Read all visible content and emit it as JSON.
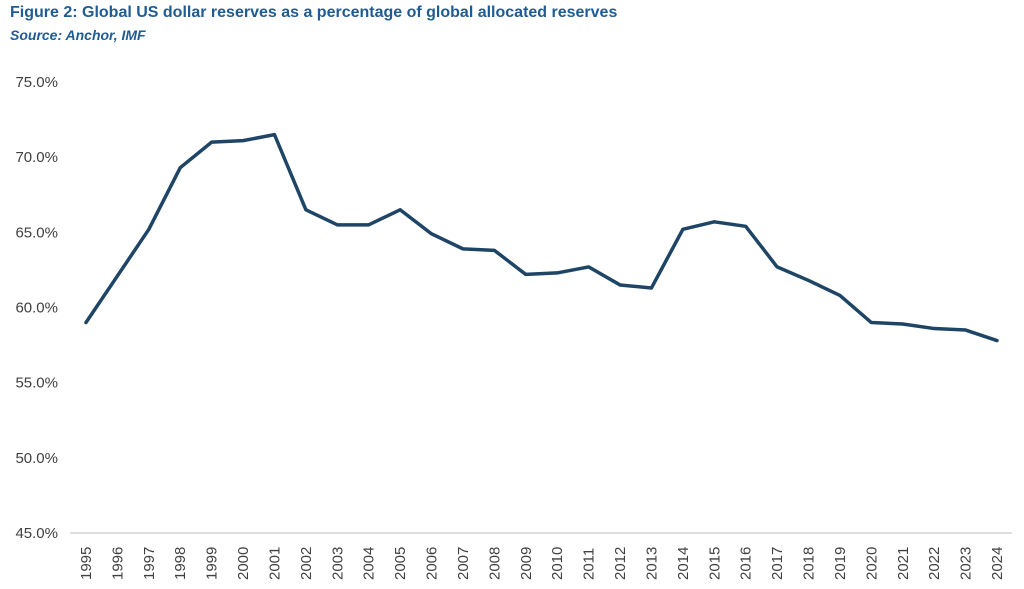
{
  "title": "Figure 2: Global US dollar reserves as a percentage of global allocated reserves",
  "subtitle": "Source: Anchor, IMF",
  "colors": {
    "line": "#1e4566",
    "axis": "#bfbfbf",
    "title": "#1f5c94"
  },
  "chart_data": {
    "type": "line",
    "title": "Figure 2: Global US dollar reserves as a percentage of global allocated reserves",
    "subtitle": "Source: Anchor, IMF",
    "xlabel": "",
    "ylabel": "",
    "ylim": [
      45,
      75
    ],
    "yticks": [
      45,
      50,
      55,
      60,
      65,
      70,
      75
    ],
    "ytick_labels": [
      "45.0%",
      "50.0%",
      "55.0%",
      "60.0%",
      "65.0%",
      "70.0%",
      "75.0%"
    ],
    "grid": false,
    "legend": "none",
    "categories": [
      "1995",
      "1996",
      "1997",
      "1998",
      "1999",
      "2000",
      "2001",
      "2002",
      "2003",
      "2004",
      "2005",
      "2006",
      "2007",
      "2008",
      "2009",
      "2010",
      "2011",
      "2012",
      "2013",
      "2014",
      "2015",
      "2016",
      "2017",
      "2018",
      "2019",
      "2020",
      "2021",
      "2022",
      "2023",
      "2024"
    ],
    "series": [
      {
        "values": [
          59.0,
          62.1,
          65.2,
          69.3,
          71.0,
          71.1,
          71.5,
          66.5,
          65.5,
          65.5,
          66.5,
          64.9,
          63.9,
          63.8,
          62.2,
          62.3,
          62.7,
          61.5,
          61.3,
          65.2,
          65.7,
          65.4,
          62.7,
          61.8,
          60.8,
          59.0,
          58.9,
          58.6,
          58.5,
          57.8
        ]
      }
    ]
  }
}
